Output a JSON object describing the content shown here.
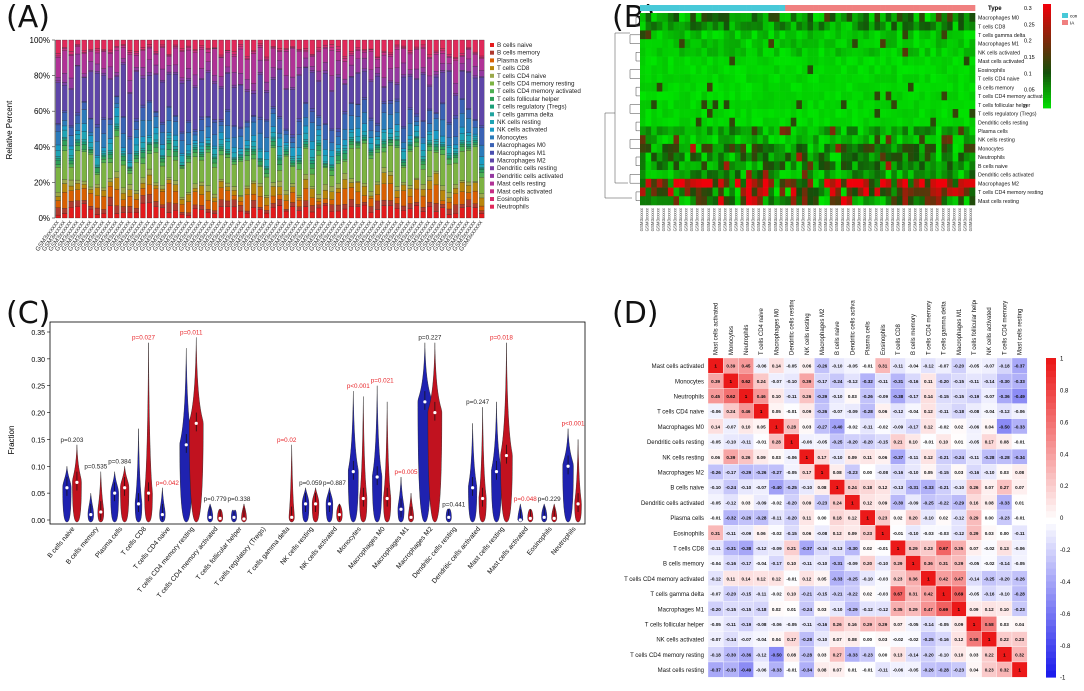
{
  "panels": {
    "a": {
      "label": "(A)"
    },
    "b": {
      "label": "(B)"
    },
    "c": {
      "label": "(C)"
    },
    "d": {
      "label": "(D)"
    }
  },
  "chart_data": [
    {
      "panel": "A",
      "type": "bar",
      "stacked": true,
      "ylabel": "Relative Percent",
      "yticks": [
        "0%",
        "20%",
        "40%",
        "60%",
        "80%",
        "100%"
      ],
      "ylim": [
        0,
        100
      ],
      "samples_count": 66,
      "sample_label": "GSM3xxxxxx",
      "legend": [
        {
          "name": "B cells naive",
          "color": "#e41a1c"
        },
        {
          "name": "B cells memory",
          "color": "#b03a2e"
        },
        {
          "name": "Plasma cells",
          "color": "#d95f02"
        },
        {
          "name": "T cells CD8",
          "color": "#b8860b"
        },
        {
          "name": "T cells CD4 naive",
          "color": "#9aa84a"
        },
        {
          "name": "T cells CD4 memory resting",
          "color": "#7cb342"
        },
        {
          "name": "T cells CD4 memory activated",
          "color": "#4caf50"
        },
        {
          "name": "T cells follicular helper",
          "color": "#2e9e58"
        },
        {
          "name": "T cells regulatory (Tregs)",
          "color": "#1b9e77"
        },
        {
          "name": "T cells gamma delta",
          "color": "#20a39e"
        },
        {
          "name": "NK cells resting",
          "color": "#1fa4b4"
        },
        {
          "name": "NK cells activated",
          "color": "#1a9bc4"
        },
        {
          "name": "Monocytes",
          "color": "#2b7bba"
        },
        {
          "name": "Macrophages M0",
          "color": "#3a62b5"
        },
        {
          "name": "Macrophages M1",
          "color": "#4b4fb0"
        },
        {
          "name": "Macrophages M2",
          "color": "#5e45a8"
        },
        {
          "name": "Dendritic cells resting",
          "color": "#7a3ea6"
        },
        {
          "name": "Dendritic cells activated",
          "color": "#9438a0"
        },
        {
          "name": "Mast cells resting",
          "color": "#b03296"
        },
        {
          "name": "Mast cells activated",
          "color": "#c72c85"
        },
        {
          "name": "Eosinophils",
          "color": "#d62a6e"
        },
        {
          "name": "Neutrophils",
          "color": "#e0295a"
        }
      ]
    },
    {
      "panel": "B",
      "type": "heatmap",
      "legend_title": "Type",
      "legend_groups": [
        {
          "name": "IA",
          "color": "#f08080"
        },
        {
          "name": "con",
          "color": "#48c9d8"
        }
      ],
      "colorbar_ticks": [
        "0.3",
        "0.25",
        "0.2",
        "0.15",
        "0.1",
        "0.05",
        "0"
      ],
      "rows": [
        "Macrophages M0",
        "T cells CD8",
        "T cells gamma delta",
        "Macrophages M1",
        "NK cells activated",
        "Mast cells activated",
        "Eosinophils",
        "T cells CD4 naive",
        "B cells memory",
        "T cells CD4 memory activated",
        "T cells follicular helper",
        "T cells regulatory (Tregs)",
        "Dendritic cells resting",
        "Plasma cells",
        "NK cells resting",
        "Monocytes",
        "Neutrophils",
        "B cells naive",
        "Dendritic cells activated",
        "Macrophages M2",
        "T cells CD4 memory resting",
        "Mast cells resting"
      ],
      "columns_count": 60
    },
    {
      "panel": "C",
      "type": "violin",
      "ylabel": "Fraction",
      "ylim": [
        0,
        0.35
      ],
      "yticks": [
        "0.00",
        "0.05",
        "0.10",
        "0.15",
        "0.20",
        "0.25",
        "0.30",
        "0.35"
      ],
      "categories": [
        "B cells naive",
        "B cells memory",
        "Plasma cells",
        "T cells CD8",
        "T cells CD4 naive",
        "T cells CD4 memory resting",
        "T cells CD4 memory activated",
        "T cells follicular helper",
        "T cells regulatory (Tregs)",
        "T cells gamma delta",
        "NK cells resting",
        "NK cells activated",
        "Monocytes",
        "Macrophages M0",
        "Macrophages M1",
        "Macrophages M2",
        "Dendritic cells resting",
        "Dendritic cells activated",
        "Mast cells resting",
        "Mast cells activated",
        "Eosinophils",
        "Neutrophils"
      ],
      "pvalues": [
        "p=0.203",
        "p=0.535",
        "p=0.384",
        "p=0.027",
        "p=0.042",
        "p=0.011",
        "p=0.779",
        "p=0.338",
        "",
        "p=0.02",
        "p=0.059",
        "p=0.887",
        "p<0.001",
        "p=0.021",
        "p=0.005",
        "p=0.227",
        "p=0.441",
        "p=0.247",
        "p=0.018",
        "p=0.048",
        "p=0.229",
        "p<0.001"
      ],
      "significant": [
        false,
        false,
        false,
        true,
        true,
        true,
        false,
        false,
        false,
        true,
        false,
        false,
        true,
        true,
        true,
        false,
        false,
        false,
        true,
        true,
        false,
        true
      ],
      "series": [
        {
          "name": "con",
          "color": "#1f22b0",
          "values": [
            0.06,
            0.01,
            0.05,
            0.03,
            0.01,
            0.14,
            0.005,
            0.005,
            0.0,
            0.0,
            0.03,
            0.03,
            0.09,
            0.08,
            0.02,
            0.22,
            0.005,
            0.06,
            0.09,
            0.0,
            0.005,
            0.1
          ]
        },
        {
          "name": "IA",
          "color": "#c1121f",
          "values": [
            0.07,
            0.015,
            0.06,
            0.05,
            0.0,
            0.18,
            0.003,
            0.002,
            0.0,
            0.005,
            0.03,
            0.01,
            0.04,
            0.04,
            0.005,
            0.2,
            0.0,
            0.04,
            0.12,
            0.003,
            0.003,
            0.03
          ]
        }
      ],
      "max_extent": [
        [
          0.1,
          0.14
        ],
        [
          0.05,
          0.09
        ],
        [
          0.09,
          0.1
        ],
        [
          0.17,
          0.33
        ],
        [
          0.06,
          0.0
        ],
        [
          0.32,
          0.34
        ],
        [
          0.03,
          0.02
        ],
        [
          0.015,
          0.03
        ],
        [
          0.0,
          0.0
        ],
        [
          0.0,
          0.14
        ],
        [
          0.06,
          0.06
        ],
        [
          0.06,
          0.03
        ],
        [
          0.24,
          0.23
        ],
        [
          0.25,
          0.22
        ],
        [
          0.08,
          0.05
        ],
        [
          0.33,
          0.33
        ],
        [
          0.02,
          0.0
        ],
        [
          0.18,
          0.21
        ],
        [
          0.22,
          0.33
        ],
        [
          0.03,
          0.02
        ],
        [
          0.03,
          0.03
        ],
        [
          0.17,
          0.15
        ]
      ]
    },
    {
      "panel": "D",
      "type": "heatmap",
      "labels": [
        "Mast cells activated",
        "Monocytes",
        "Neutrophils",
        "T cells CD4 naive",
        "Macrophages M0",
        "Dendritic cells resting",
        "NK cells resting",
        "Macrophages M2",
        "B cells naive",
        "Dendritic cells activated",
        "Plasma cells",
        "Eosinophils",
        "T cells CD8",
        "B cells memory",
        "T cells CD4 memory activated",
        "T cells gamma delta",
        "Macrophages M1",
        "T cells follicular helper",
        "NK cells activated",
        "T cells CD4 memory resting",
        "Mast cells resting"
      ],
      "colorbar_ticks": [
        "1",
        "0.8",
        "0.6",
        "0.4",
        "0.2",
        "0",
        "-0.2",
        "-0.4",
        "-0.6",
        "-0.8",
        "-1"
      ],
      "matrix": [
        [
          1,
          0.39,
          0.45,
          -0.06,
          0.14,
          -0.05,
          0.06,
          -0.26,
          -0.1,
          -0.05,
          -0.01,
          0.31,
          -0.11,
          -0.04,
          -0.12,
          -0.07,
          -0.2,
          -0.05,
          -0.07,
          -0.18,
          -0.37
        ],
        [
          0.39,
          1,
          0.62,
          0.24,
          -0.07,
          -0.1,
          0.39,
          -0.17,
          -0.24,
          -0.12,
          -0.32,
          -0.11,
          -0.31,
          -0.16,
          0.11,
          -0.2,
          -0.15,
          -0.11,
          -0.14,
          -0.3,
          -0.33
        ],
        [
          0.45,
          0.62,
          1,
          0.46,
          0.1,
          -0.11,
          0.26,
          -0.29,
          -0.1,
          0.03,
          -0.26,
          -0.09,
          -0.38,
          -0.17,
          0.14,
          -0.15,
          -0.15,
          -0.19,
          -0.07,
          -0.36,
          -0.49
        ],
        [
          -0.06,
          0.24,
          0.46,
          1,
          0.05,
          -0.01,
          0.09,
          -0.26,
          -0.07,
          -0.09,
          -0.28,
          0.06,
          -0.12,
          -0.04,
          0.12,
          -0.11,
          -0.18,
          -0.08,
          -0.04,
          -0.12,
          -0.06
        ],
        [
          0.14,
          -0.07,
          0.1,
          0.05,
          1,
          0.28,
          0.03,
          -0.27,
          -0.4,
          -0.02,
          -0.11,
          -0.02,
          -0.09,
          -0.17,
          0.12,
          -0.02,
          0.02,
          -0.06,
          0.04,
          -0.5,
          -0.33
        ],
        [
          -0.05,
          -0.1,
          -0.11,
          -0.01,
          0.28,
          1,
          -0.06,
          -0.05,
          -0.25,
          -0.2,
          -0.2,
          -0.15,
          0.21,
          0.1,
          -0.01,
          0.1,
          0.01,
          -0.05,
          0.17,
          0.08,
          -0.01
        ],
        [
          0.06,
          0.39,
          0.26,
          0.09,
          0.03,
          -0.06,
          1,
          0.17,
          -0.1,
          0.09,
          0.11,
          0.06,
          -0.37,
          -0.11,
          0.12,
          -0.21,
          -0.24,
          -0.11,
          -0.28,
          -0.28,
          -0.34
        ],
        [
          -0.26,
          -0.17,
          -0.29,
          -0.26,
          -0.27,
          -0.05,
          0.17,
          1,
          0.08,
          -0.23,
          0,
          -0.08,
          -0.16,
          -0.1,
          0.05,
          -0.15,
          0.03,
          -0.16,
          -0.1,
          0.03,
          0.08
        ],
        [
          -0.1,
          -0.24,
          -0.1,
          -0.07,
          -0.4,
          -0.25,
          -0.1,
          0.08,
          1,
          0.24,
          0.18,
          0.12,
          -0.13,
          -0.31,
          -0.33,
          -0.21,
          -0.1,
          0.26,
          0.07,
          0.27,
          0.07
        ],
        [
          -0.05,
          -0.12,
          0.03,
          -0.09,
          -0.02,
          -0.2,
          0.09,
          -0.23,
          0.24,
          1,
          0.12,
          0.09,
          -0.3,
          -0.09,
          -0.25,
          -0.22,
          -0.29,
          0.16,
          0.08,
          -0.33,
          0.01
        ],
        [
          -0.01,
          -0.32,
          -0.26,
          -0.28,
          -0.11,
          -0.2,
          0.11,
          0,
          0.18,
          0.12,
          1,
          0.23,
          0.02,
          0.2,
          -0.1,
          0.02,
          -0.12,
          0.29,
          0,
          -0.23,
          -0.01
        ],
        [
          0.31,
          -0.11,
          -0.09,
          0.06,
          -0.02,
          -0.15,
          0.06,
          -0.08,
          0.12,
          0.09,
          0.23,
          1,
          -0.01,
          -0.1,
          -0.03,
          -0.03,
          -0.12,
          0.29,
          0.03,
          0,
          -0.11
        ],
        [
          -0.11,
          -0.31,
          -0.38,
          -0.12,
          -0.09,
          0.21,
          -0.37,
          -0.16,
          -0.13,
          -0.3,
          0.02,
          -0.01,
          1,
          0.29,
          0.23,
          0.67,
          0.35,
          0.07,
          -0.02,
          0.13,
          -0.06
        ],
        [
          -0.04,
          -0.16,
          -0.17,
          -0.04,
          -0.17,
          0.1,
          -0.11,
          -0.1,
          -0.31,
          -0.09,
          0.2,
          -0.1,
          0.29,
          1,
          0.36,
          0.31,
          0.29,
          -0.05,
          -0.02,
          -0.14,
          -0.05
        ],
        [
          -0.12,
          0.11,
          0.14,
          0.12,
          0.12,
          -0.01,
          0.12,
          0.05,
          -0.33,
          -0.25,
          -0.1,
          -0.03,
          0.23,
          0.36,
          1,
          0.42,
          0.47,
          -0.14,
          -0.25,
          -0.2,
          -0.26
        ],
        [
          -0.07,
          -0.2,
          -0.15,
          -0.11,
          -0.02,
          0.1,
          -0.21,
          -0.15,
          -0.21,
          -0.22,
          0.02,
          -0.03,
          0.67,
          0.31,
          0.42,
          1,
          0.69,
          -0.05,
          -0.16,
          -0.1,
          -0.28
        ],
        [
          -0.2,
          -0.15,
          -0.15,
          -0.18,
          0.02,
          0.01,
          -0.24,
          0.03,
          -0.1,
          -0.29,
          -0.12,
          -0.12,
          0.35,
          0.29,
          0.47,
          0.69,
          1,
          0.09,
          0.12,
          0.1,
          -0.23
        ],
        [
          -0.05,
          -0.11,
          -0.19,
          -0.08,
          -0.06,
          -0.05,
          -0.11,
          -0.16,
          0.26,
          0.16,
          0.29,
          0.29,
          0.07,
          -0.05,
          -0.14,
          -0.05,
          0.09,
          1,
          0.58,
          0.03,
          0.04
        ],
        [
          -0.07,
          -0.14,
          -0.07,
          -0.04,
          0.04,
          0.17,
          -0.28,
          -0.1,
          0.07,
          0.08,
          0,
          0.03,
          -0.02,
          -0.02,
          -0.25,
          -0.16,
          0.12,
          0.58,
          1,
          0.22,
          0.23
        ],
        [
          -0.18,
          -0.3,
          -0.36,
          -0.12,
          -0.5,
          0.08,
          -0.28,
          0.03,
          0.27,
          -0.33,
          -0.23,
          0,
          0.13,
          -0.14,
          -0.2,
          -0.1,
          0.1,
          0.03,
          0.22,
          1,
          0.32
        ],
        [
          -0.37,
          -0.33,
          -0.49,
          -0.06,
          -0.33,
          -0.01,
          -0.34,
          0.08,
          0.07,
          0.01,
          -0.01,
          -0.11,
          -0.06,
          -0.05,
          -0.26,
          -0.28,
          -0.23,
          0.04,
          0.23,
          0.32,
          1
        ]
      ]
    }
  ]
}
